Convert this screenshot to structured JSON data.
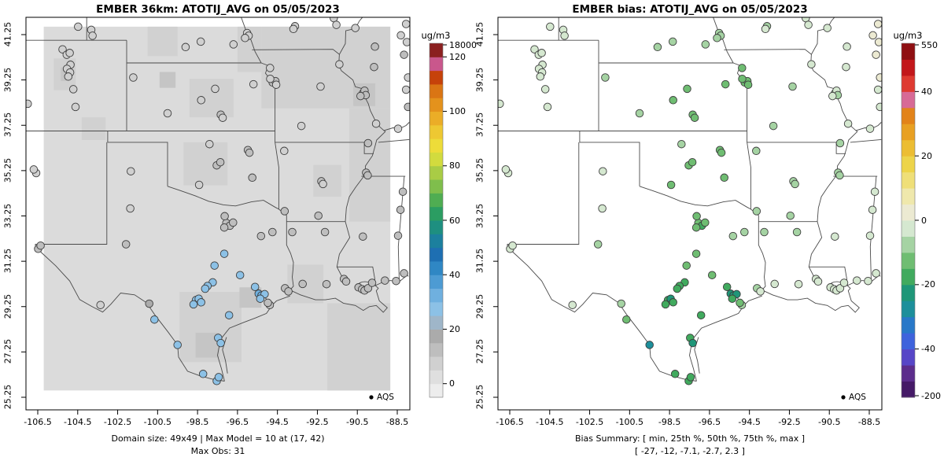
{
  "panels": [
    {
      "title": "EMBER 36km: ATOTIJ_AVG on 05/05/2023",
      "captions": [
        "Domain size: 49x49 | Max Model = 10 at (17, 42)",
        "Max Obs: 31"
      ],
      "legend_label": "AQS",
      "colorbar": {
        "unit": "ug/m3",
        "ticks": [
          {
            "label": "18000",
            "cap": "top"
          },
          {
            "label": "120",
            "v": 120
          },
          {
            "label": "100",
            "v": 100
          },
          {
            "label": "80",
            "v": 80
          },
          {
            "label": "60",
            "v": 60
          },
          {
            "label": "40",
            "v": 40
          },
          {
            "label": "20",
            "v": 20
          },
          {
            "label": "0",
            "v": 0
          }
        ]
      }
    },
    {
      "title": "EMBER bias: ATOTIJ_AVG on 05/05/2023",
      "captions": [
        "Bias Summary: [ min, 25th %, 50th %, 75th %, max ]",
        "[ -27, -12, -7.1, -2.7, 2.3 ]"
      ],
      "legend_label": "AQS",
      "colorbar": {
        "unit": "ug/m3",
        "ticks": [
          {
            "label": "550",
            "cap": "top"
          },
          {
            "label": "40",
            "v": 40
          },
          {
            "label": "20",
            "v": 20
          },
          {
            "label": "0",
            "v": 0
          },
          {
            "label": "-20",
            "v": -20
          },
          {
            "label": "-40",
            "v": -40
          },
          {
            "label": "-200",
            "cap": "bottom"
          }
        ]
      }
    }
  ],
  "axes": {
    "x_tick_labels": [
      "-106.5",
      "-104.5",
      "-102.5",
      "-100.5",
      "-98.5",
      "-96.5",
      "-94.5",
      "-92.5",
      "-90.5",
      "-88.5"
    ],
    "y_tick_labels": [
      "25.25",
      "27.25",
      "29.25",
      "31.25",
      "33.25",
      "35.25",
      "37.25",
      "39.25",
      "41.25"
    ]
  },
  "chart_data": {
    "type": "scatter",
    "subtype": "geo-scatter-pair",
    "description": "Two maps of the same AQS monitoring stations over the south-central US (lon -106.5..-88.5, lat 25.25..41.25). Left: modeled ATOTIJ_AVG field (gray gridded shading, max model 10) with observed station values as dots (max obs 31). Right: model bias at stations (min -27, q25 -12, median -7.1, q75 -2.7, max 2.3).",
    "domain": {
      "lon_min": -106.2,
      "lon_max": -88.85,
      "lat_min": 25.55,
      "lat_max": 41.6,
      "base_color": "#DBDBDB"
    },
    "left_scale": {
      "vmin": -5,
      "step": 5,
      "colors": [
        "#EDEDED",
        "#DFDFDF",
        "#D0D0D0",
        "#BEBEBE",
        "#ABABAB",
        "#9FB6C9",
        "#8CC1E6",
        "#6FB0DF",
        "#4D9BD3",
        "#2F87C4",
        "#1E6FB2",
        "#1C809E",
        "#1E8F80",
        "#2B9D62",
        "#4FAD52",
        "#7FBE4C",
        "#A9CC45",
        "#D2DB3E",
        "#EDDC39",
        "#EEC832",
        "#EBAD27",
        "#E4921C",
        "#DA7514",
        "#C6420A",
        "#C9578C",
        "#8B2020"
      ]
    },
    "right_scale": {
      "vmin": -55,
      "step": 5,
      "colors": [
        "#451A67",
        "#5C2D8C",
        "#5746C7",
        "#3E63DC",
        "#2878C8",
        "#1D8F9B",
        "#1F9678",
        "#41AA5E",
        "#6FBD72",
        "#A5D3A3",
        "#D5E8D0",
        "#ECEAD2",
        "#EFE8AC",
        "#EFDF78",
        "#EDD44A",
        "#ECBD33",
        "#E8A023",
        "#E2831A",
        "#D76A96",
        "#DE3A31",
        "#C2171B",
        "#8F0F12"
      ]
    },
    "patch_colors": [
      "#D1D1D1",
      "#C5C5C5"
    ],
    "grid_patches": [
      [
        -95.3,
        41.6,
        -88.85,
        38.0,
        0
      ],
      [
        -96.5,
        41.6,
        -95.3,
        39.6,
        0
      ],
      [
        -90.9,
        38.0,
        -88.85,
        33.0,
        0
      ],
      [
        -92.0,
        29.4,
        -88.85,
        25.55,
        0
      ],
      [
        -99.4,
        29.9,
        -96.3,
        26.8,
        0
      ],
      [
        -98.6,
        28.1,
        -97.4,
        27.0,
        1
      ],
      [
        -105.7,
        40.2,
        -104.6,
        38.8,
        0
      ],
      [
        -105.35,
        39.8,
        -104.9,
        39.2,
        1
      ],
      [
        -99.2,
        36.5,
        -97.0,
        34.6,
        0
      ],
      [
        -98.9,
        39.3,
        -96.7,
        37.6,
        0
      ],
      [
        -101.0,
        41.6,
        -99.5,
        40.3,
        0
      ],
      [
        -94.0,
        31.1,
        -92.2,
        29.4,
        0
      ],
      [
        -90.7,
        39.1,
        -89.6,
        38.1,
        1
      ],
      [
        -96.4,
        30.1,
        -95.3,
        29.2,
        1
      ],
      [
        -100.4,
        39.6,
        -99.6,
        38.9,
        1
      ],
      [
        -92.7,
        35.5,
        -91.3,
        34.1,
        0
      ],
      [
        -104.3,
        37.6,
        -103.1,
        36.6,
        0
      ]
    ],
    "stations": [
      [
        -105.26,
        40.6,
        6,
        -1.5
      ],
      [
        -105.05,
        40.36,
        7,
        -2
      ],
      [
        -104.9,
        40.44,
        6,
        -1.5
      ],
      [
        -104.86,
        39.92,
        8,
        -2.5
      ],
      [
        -105.04,
        39.74,
        7,
        -2
      ],
      [
        -104.88,
        39.58,
        8,
        -2.5
      ],
      [
        -104.97,
        39.4,
        7,
        -2
      ],
      [
        -104.72,
        38.84,
        7,
        -2.5
      ],
      [
        -104.61,
        38.06,
        6,
        -2
      ],
      [
        -104.48,
        41.6,
        6,
        -1.5
      ],
      [
        -103.82,
        41.46,
        7,
        -2
      ],
      [
        -103.76,
        41.2,
        6,
        -1.5
      ],
      [
        -106.58,
        35.14,
        8,
        -3
      ],
      [
        -106.7,
        35.3,
        7,
        -2.5
      ],
      [
        -107.0,
        38.2,
        6,
        -2
      ],
      [
        -106.48,
        31.8,
        11,
        -5
      ],
      [
        -106.36,
        31.94,
        10,
        -4.5
      ],
      [
        -101.84,
        35.22,
        8,
        -4
      ],
      [
        -101.87,
        33.58,
        9,
        -5
      ],
      [
        -102.08,
        32.0,
        10,
        -5.5
      ],
      [
        -96.02,
        41.32,
        9,
        -10
      ],
      [
        -95.94,
        41.2,
        8,
        -9
      ],
      [
        -96.12,
        41.1,
        8,
        -9
      ],
      [
        -96.7,
        40.82,
        8,
        -9
      ],
      [
        -98.34,
        40.94,
        7,
        -8
      ],
      [
        -99.1,
        40.7,
        7,
        -7
      ],
      [
        -93.62,
        41.62,
        9,
        -6
      ],
      [
        -93.7,
        41.5,
        8,
        -5
      ],
      [
        -91.68,
        41.98,
        9,
        -5
      ],
      [
        -91.55,
        41.68,
        8,
        -4
      ],
      [
        -90.6,
        41.54,
        9,
        -4
      ],
      [
        -97.34,
        37.72,
        10,
        -13
      ],
      [
        -97.24,
        37.58,
        9,
        -12
      ],
      [
        -100.0,
        37.78,
        8,
        -10
      ],
      [
        -101.72,
        39.36,
        7,
        -8
      ],
      [
        -97.62,
        38.86,
        8,
        -11
      ],
      [
        -98.32,
        38.36,
        9,
        -12
      ],
      [
        -95.7,
        39.06,
        9,
        -12
      ],
      [
        -94.74,
        39.14,
        10,
        -14
      ],
      [
        -94.6,
        39.2,
        10,
        -15
      ],
      [
        -94.56,
        39.04,
        9,
        -13
      ],
      [
        -94.86,
        39.3,
        9,
        -12
      ],
      [
        -94.87,
        39.78,
        9,
        -11
      ],
      [
        -92.34,
        38.96,
        9,
        -7
      ],
      [
        -93.3,
        37.22,
        9,
        -8
      ],
      [
        -90.22,
        38.66,
        11,
        -6
      ],
      [
        -90.14,
        38.78,
        10,
        -5
      ],
      [
        -90.08,
        38.58,
        11,
        -7
      ],
      [
        -90.34,
        38.54,
        10,
        -5
      ],
      [
        -91.4,
        39.94,
        9,
        -3
      ],
      [
        -89.62,
        40.72,
        10,
        -3
      ],
      [
        -89.66,
        39.82,
        10,
        -2
      ],
      [
        -88.06,
        41.72,
        9,
        0
      ],
      [
        -88.32,
        41.22,
        8,
        0.5
      ],
      [
        -88.02,
        40.92,
        9,
        1
      ],
      [
        -88.16,
        40.36,
        10,
        2.3
      ],
      [
        -87.96,
        39.36,
        9,
        0.5
      ],
      [
        -88.06,
        38.82,
        9,
        -1
      ],
      [
        -87.96,
        38.06,
        10,
        -1.5
      ],
      [
        -88.46,
        37.1,
        9,
        -2
      ],
      [
        -89.56,
        37.32,
        9,
        -4
      ],
      [
        -89.96,
        36.46,
        10,
        -6
      ],
      [
        -90.06,
        35.16,
        11,
        -8
      ],
      [
        -89.98,
        35.04,
        10,
        -7
      ],
      [
        -97.54,
        35.48,
        10,
        -12
      ],
      [
        -97.36,
        35.62,
        11,
        -13
      ],
      [
        -95.98,
        36.16,
        11,
        -14
      ],
      [
        -95.9,
        36.04,
        10,
        -13
      ],
      [
        -98.42,
        34.62,
        9,
        -11
      ],
      [
        -97.9,
        36.42,
        9,
        -10
      ],
      [
        -95.76,
        34.94,
        10,
        -12
      ],
      [
        -92.3,
        34.78,
        10,
        -9
      ],
      [
        -92.22,
        34.66,
        9,
        -8
      ],
      [
        -94.16,
        36.12,
        9,
        -9
      ],
      [
        -92.45,
        33.26,
        10,
        -7
      ],
      [
        -93.76,
        32.54,
        11,
        -8
      ],
      [
        -92.12,
        32.54,
        10,
        -6
      ],
      [
        -90.22,
        32.34,
        10,
        -4
      ],
      [
        -88.22,
        34.32,
        10,
        -3
      ],
      [
        -88.34,
        33.52,
        10,
        -3.5
      ],
      [
        -88.46,
        32.38,
        11,
        -3
      ],
      [
        -97.06,
        32.94,
        11,
        -14
      ],
      [
        -96.88,
        32.82,
        12,
        -16
      ],
      [
        -97.16,
        32.74,
        11,
        -15
      ],
      [
        -96.72,
        32.96,
        10,
        -13
      ],
      [
        -97.14,
        33.24,
        10,
        -12
      ],
      [
        -95.32,
        32.36,
        11,
        -9
      ],
      [
        -94.75,
        32.54,
        11,
        -8
      ],
      [
        -94.14,
        33.46,
        10,
        -8
      ],
      [
        -97.65,
        31.06,
        26,
        -14
      ],
      [
        -97.16,
        31.58,
        26,
        -13
      ],
      [
        -97.74,
        30.32,
        28,
        -18
      ],
      [
        -98.0,
        30.16,
        27,
        -16
      ],
      [
        -98.12,
        30.04,
        27,
        -17
      ],
      [
        -96.37,
        30.64,
        26,
        -14
      ],
      [
        -95.62,
        30.12,
        28,
        -18
      ],
      [
        -95.44,
        29.82,
        30,
        -22
      ],
      [
        -95.3,
        29.74,
        31,
        -23
      ],
      [
        -95.14,
        29.8,
        29,
        -21
      ],
      [
        -95.36,
        29.6,
        28,
        -19
      ],
      [
        -94.88,
        29.32,
        13,
        -10
      ],
      [
        -94.98,
        29.42,
        14,
        -11
      ],
      [
        -94.12,
        30.06,
        12,
        -6
      ],
      [
        -93.95,
        29.92,
        12,
        -5
      ],
      [
        -98.58,
        29.54,
        28,
        -20
      ],
      [
        -98.44,
        29.6,
        29,
        -21
      ],
      [
        -98.32,
        29.44,
        27,
        -19
      ],
      [
        -98.7,
        29.35,
        27,
        -18
      ],
      [
        -96.92,
        28.87,
        26,
        -16
      ],
      [
        -97.47,
        27.87,
        27,
        -19
      ],
      [
        -97.34,
        27.64,
        28,
        -21
      ],
      [
        -99.5,
        27.56,
        29,
        -27
      ],
      [
        -100.66,
        28.68,
        26,
        -15
      ],
      [
        -100.92,
        29.38,
        18,
        -8
      ],
      [
        -103.36,
        29.32,
        7,
        -2.5
      ],
      [
        -98.22,
        26.28,
        27,
        -18
      ],
      [
        -97.54,
        25.97,
        27,
        -17
      ],
      [
        -97.44,
        26.14,
        26,
        -16
      ],
      [
        -93.24,
        30.25,
        13,
        -5
      ],
      [
        -92.04,
        30.24,
        12,
        -4
      ],
      [
        -91.17,
        30.47,
        12,
        -3
      ],
      [
        -91.06,
        30.36,
        11,
        -2.5
      ],
      [
        -90.44,
        30.1,
        11,
        -2
      ],
      [
        -90.26,
        30.02,
        12,
        -2
      ],
      [
        -90.14,
        29.96,
        11,
        -1.5
      ],
      [
        -89.96,
        30.06,
        12,
        -1
      ],
      [
        -89.76,
        30.3,
        12,
        -1.5
      ],
      [
        -89.12,
        30.4,
        11,
        -1.5
      ],
      [
        -88.56,
        30.38,
        12,
        -2
      ],
      [
        -88.16,
        30.72,
        11,
        -2
      ]
    ]
  }
}
